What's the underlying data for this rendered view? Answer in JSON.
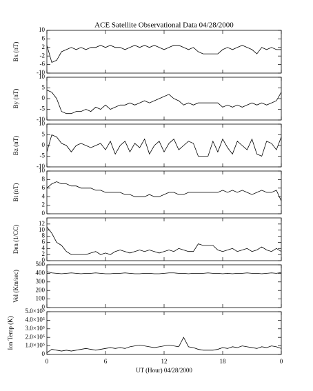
{
  "chart_data": [
    {
      "type": "line",
      "title": "ACE Satellite Observational Data  04/28/2000",
      "ylabel": "Bx (nT)",
      "x": [
        0,
        0.5,
        1,
        1.5,
        2,
        2.5,
        3,
        3.5,
        4,
        4.5,
        5,
        5.5,
        6,
        6.5,
        7,
        7.5,
        8,
        8.5,
        9,
        9.5,
        10,
        10.5,
        11,
        11.5,
        12,
        12.5,
        13,
        13.5,
        14,
        14.5,
        15,
        15.5,
        16,
        16.5,
        17,
        17.5,
        18,
        18.5,
        19,
        19.5,
        20,
        20.5,
        21,
        21.5,
        22,
        22.5,
        23,
        23.5,
        24
      ],
      "values": [
        3,
        -5,
        -4,
        0,
        1,
        2,
        1,
        2,
        1,
        2,
        2,
        3,
        2,
        3,
        2,
        2,
        1,
        2,
        3,
        2,
        3,
        2,
        3,
        2,
        1,
        2,
        3,
        3,
        2,
        1,
        2,
        0,
        -1,
        -1,
        -1,
        -1,
        1,
        2,
        1,
        2,
        3,
        2,
        1,
        -1,
        2,
        1,
        2,
        1,
        1
      ],
      "xlim": [
        0,
        24
      ],
      "ylim": [
        -10,
        10
      ],
      "yticks": [
        -10,
        -6,
        -2,
        2,
        6,
        10
      ],
      "color": "#000000"
    },
    {
      "type": "line",
      "ylabel": "By (nT)",
      "x": [
        0,
        0.5,
        1,
        1.5,
        2,
        2.5,
        3,
        3.5,
        4,
        4.5,
        5,
        5.5,
        6,
        6.5,
        7,
        7.5,
        8,
        8.5,
        9,
        9.5,
        10,
        10.5,
        11,
        11.5,
        12,
        12.5,
        13,
        13.5,
        14,
        14.5,
        15,
        15.5,
        16,
        16.5,
        17,
        17.5,
        18,
        18.5,
        19,
        19.5,
        20,
        20.5,
        21,
        21.5,
        22,
        22.5,
        23,
        23.5,
        24
      ],
      "values": [
        4,
        3,
        0,
        -6,
        -7,
        -7,
        -6,
        -6,
        -5,
        -6,
        -4,
        -5,
        -3,
        -5,
        -4,
        -3,
        -3,
        -2,
        -3,
        -2,
        -1,
        -2,
        -1,
        0,
        1,
        2,
        0,
        -1,
        -3,
        -2,
        -3,
        -2,
        -2,
        -2,
        -2,
        -2,
        -4,
        -3,
        -4,
        -3,
        -4,
        -3,
        -2,
        -3,
        -2,
        -3,
        -2,
        -1,
        3
      ],
      "xlim": [
        0,
        24
      ],
      "ylim": [
        -10,
        10
      ],
      "yticks": [
        -10,
        -5,
        0,
        5,
        10
      ],
      "color": "#000000"
    },
    {
      "type": "line",
      "ylabel": "Bz (nT)",
      "x": [
        0,
        0.5,
        1,
        1.5,
        2,
        2.5,
        3,
        3.5,
        4,
        4.5,
        5,
        5.5,
        6,
        6.5,
        7,
        7.5,
        8,
        8.5,
        9,
        9.5,
        10,
        10.5,
        11,
        11.5,
        12,
        12.5,
        13,
        13.5,
        14,
        14.5,
        15,
        15.5,
        16,
        16.5,
        17,
        17.5,
        18,
        18.5,
        19,
        19.5,
        20,
        20.5,
        21,
        21.5,
        22,
        22.5,
        23,
        23.5,
        24
      ],
      "values": [
        -3,
        5,
        4,
        1,
        0,
        -3,
        0,
        1,
        0,
        -1,
        0,
        1,
        -2,
        2,
        -4,
        0,
        2,
        -3,
        1,
        -1,
        3,
        -4,
        0,
        2,
        -3,
        1,
        3,
        -2,
        0,
        2,
        1,
        -5,
        -5,
        -5,
        2,
        -3,
        3,
        -1,
        -4,
        2,
        0,
        -2,
        3,
        -4,
        -5,
        2,
        1,
        -2,
        4
      ],
      "xlim": [
        0,
        24
      ],
      "ylim": [
        -10,
        10
      ],
      "yticks": [
        -10,
        -5,
        0,
        5,
        10
      ],
      "color": "#000000"
    },
    {
      "type": "line",
      "ylabel": "Bt (nT)",
      "x": [
        0,
        0.5,
        1,
        1.5,
        2,
        2.5,
        3,
        3.5,
        4,
        4.5,
        5,
        5.5,
        6,
        6.5,
        7,
        7.5,
        8,
        8.5,
        9,
        9.5,
        10,
        10.5,
        11,
        11.5,
        12,
        12.5,
        13,
        13.5,
        14,
        14.5,
        15,
        15.5,
        16,
        16.5,
        17,
        17.5,
        18,
        18.5,
        19,
        19.5,
        20,
        20.5,
        21,
        21.5,
        22,
        22.5,
        23,
        23.5,
        24
      ],
      "values": [
        6,
        7,
        7.5,
        7,
        7,
        6.5,
        6.5,
        6,
        6,
        6,
        5.5,
        5.5,
        5,
        5,
        5,
        5,
        4.5,
        4.5,
        4,
        4,
        4,
        4.5,
        4,
        4,
        4.5,
        5,
        5,
        4.5,
        4.5,
        5,
        5,
        5,
        5,
        5,
        5,
        5,
        5.5,
        5,
        5.5,
        5,
        5.5,
        5,
        4.5,
        5,
        5.5,
        5,
        5,
        5.5,
        3
      ],
      "xlim": [
        0,
        24
      ],
      "ylim": [
        0,
        10
      ],
      "yticks": [
        0,
        2,
        4,
        6,
        8,
        10
      ],
      "color": "#000000"
    },
    {
      "type": "line",
      "ylabel": "Den (1/CC)",
      "x": [
        0,
        0.5,
        1,
        1.5,
        2,
        2.5,
        3,
        3.5,
        4,
        4.5,
        5,
        5.5,
        6,
        6.5,
        7,
        7.5,
        8,
        8.5,
        9,
        9.5,
        10,
        10.5,
        11,
        11.5,
        12,
        12.5,
        13,
        13.5,
        14,
        14.5,
        15,
        15.5,
        16,
        16.5,
        17,
        17.5,
        18,
        18.5,
        19,
        19.5,
        20,
        20.5,
        21,
        21.5,
        22,
        22.5,
        23,
        23.5,
        24
      ],
      "values": [
        11,
        9,
        6,
        5,
        3,
        2,
        2,
        2,
        2,
        2.5,
        3,
        2,
        2.5,
        2,
        3,
        3.5,
        3,
        2.5,
        3,
        3.5,
        3,
        3.5,
        3,
        2.5,
        3,
        3.5,
        3,
        4,
        3.5,
        3,
        3,
        5.5,
        5,
        5,
        5,
        3.5,
        3,
        3.5,
        4,
        3,
        3.5,
        4,
        3,
        3.5,
        4.5,
        3.5,
        3,
        4,
        3
      ],
      "xlim": [
        0,
        24
      ],
      "ylim": [
        0,
        14
      ],
      "yticks": [
        0,
        2,
        4,
        6,
        8,
        10,
        12
      ],
      "color": "#000000"
    },
    {
      "type": "line",
      "ylabel": "Vel (Km/sec)",
      "x": [
        0,
        0.5,
        1,
        1.5,
        2,
        2.5,
        3,
        3.5,
        4,
        4.5,
        5,
        5.5,
        6,
        6.5,
        7,
        7.5,
        8,
        8.5,
        9,
        9.5,
        10,
        10.5,
        11,
        11.5,
        12,
        12.5,
        13,
        13.5,
        14,
        14.5,
        15,
        15.5,
        16,
        16.5,
        17,
        17.5,
        18,
        18.5,
        19,
        19.5,
        20,
        20.5,
        21,
        21.5,
        22,
        22.5,
        23,
        23.5,
        24
      ],
      "values": [
        420,
        405,
        400,
        395,
        400,
        405,
        400,
        395,
        400,
        400,
        405,
        400,
        395,
        395,
        400,
        400,
        405,
        400,
        395,
        395,
        400,
        400,
        395,
        395,
        400,
        405,
        405,
        400,
        400,
        395,
        400,
        400,
        400,
        405,
        400,
        400,
        395,
        400,
        395,
        400,
        400,
        405,
        400,
        400,
        395,
        400,
        405,
        400,
        410
      ],
      "xlim": [
        0,
        24
      ],
      "ylim": [
        0,
        500
      ],
      "yticks": [
        0,
        100,
        200,
        300,
        400,
        500
      ],
      "color": "#000000"
    },
    {
      "type": "line",
      "ylabel": "Ion Temp (K)",
      "xlabel": "UT (Hour)  04/28/2000",
      "x": [
        0,
        0.5,
        1,
        1.5,
        2,
        2.5,
        3,
        3.5,
        4,
        4.5,
        5,
        5.5,
        6,
        6.5,
        7,
        7.5,
        8,
        8.5,
        9,
        9.5,
        10,
        10.5,
        11,
        11.5,
        12,
        12.5,
        13,
        13.5,
        14,
        14.5,
        15,
        15.5,
        16,
        16.5,
        17,
        17.5,
        18,
        18.5,
        19,
        19.5,
        20,
        20.5,
        21,
        21.5,
        22,
        22.5,
        23,
        23.5,
        24
      ],
      "values": [
        20000,
        60000,
        50000,
        40000,
        50000,
        40000,
        50000,
        60000,
        70000,
        60000,
        50000,
        60000,
        70000,
        80000,
        70000,
        80000,
        70000,
        90000,
        100000,
        110000,
        100000,
        90000,
        80000,
        90000,
        100000,
        110000,
        100000,
        90000,
        200000,
        90000,
        80000,
        60000,
        50000,
        50000,
        50000,
        60000,
        80000,
        70000,
        90000,
        80000,
        100000,
        90000,
        80000,
        70000,
        90000,
        80000,
        100000,
        90000,
        70000
      ],
      "xlim": [
        0,
        24
      ],
      "ylim": [
        0,
        500000
      ],
      "yticks": [
        0,
        {
          "value": 100000,
          "label": "1.0×10⁵"
        },
        {
          "value": 200000,
          "label": "2.0×10⁵"
        },
        {
          "value": 300000,
          "label": "3.0×10⁵"
        },
        {
          "value": 400000,
          "label": "4.0×10⁵"
        },
        {
          "value": 500000,
          "label": "5.0×10⁵"
        }
      ],
      "xticks": [
        0,
        6,
        12,
        18,
        {
          "value": 24,
          "label": "0"
        }
      ],
      "color": "#000000"
    }
  ]
}
